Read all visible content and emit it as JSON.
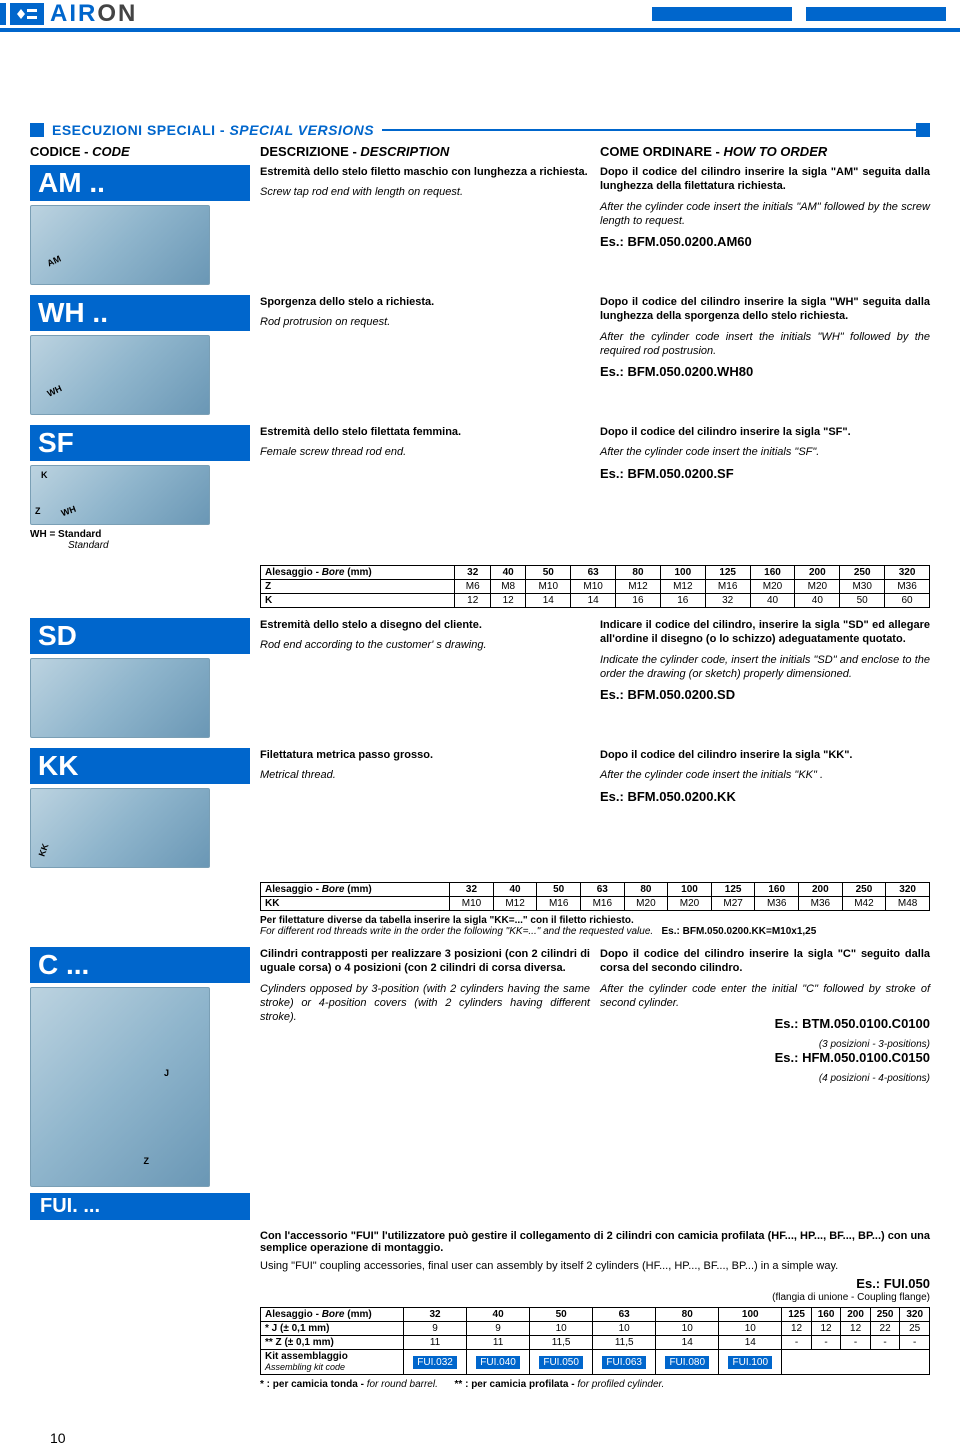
{
  "brand": {
    "air": "AIR",
    "on": "ON"
  },
  "section_title": {
    "main": "ESECUZIONI SPECIALI - ",
    "it": "SPECIAL VERSIONS"
  },
  "headers": {
    "code": "CODICE - ",
    "code_it": "CODE",
    "desc": "DESCRIZIONE - ",
    "desc_it": "DESCRIPTION",
    "order": "COME ORDINARE - ",
    "order_it": "HOW TO ORDER"
  },
  "am": {
    "code": "AM ..",
    "desc1": "Estremità dello stelo filetto maschio con lunghezza a richiesta.",
    "desc2": "Screw tap rod end with length on request.",
    "order1": "Dopo il codice del cilindro inserire la sigla \"AM\" seguita dalla lunghezza della filettatura richiesta.",
    "order2": "After the cylinder code insert the initials \"AM\" followed by the screw length to request.",
    "es": "Es.: BFM.050.0200.AM60",
    "img_label": "AM"
  },
  "wh": {
    "code": "WH ..",
    "desc1": "Sporgenza dello stelo a richiesta.",
    "desc2": "Rod protrusion on request.",
    "order1": "Dopo il codice del cilindro inserire la sigla \"WH\" seguita dalla lunghezza della sporgenza dello stelo richiesta.",
    "order2": "After the cylinder code insert the initials \"WH\" followed by the required rod postrusion.",
    "es": "Es.: BFM.050.0200.WH80",
    "img_label": "WH"
  },
  "sf": {
    "code": "SF",
    "desc1": "Estremità dello stelo filettata femmina.",
    "desc2": "Female screw thread rod end.",
    "order1": "Dopo il codice del cilindro inserire la sigla \"SF\".",
    "order2": "After the cylinder code insert the initials \"SF\".",
    "es": "Es.: BFM.050.0200.SF",
    "wh_note": "WH = Standard",
    "wh_note_it": "Standard",
    "img_k": "K",
    "img_z": "Z",
    "img_wh": "WH",
    "table": {
      "header": "Alesaggio - ",
      "header_it": "Bore",
      "unit": "(mm)",
      "cols": [
        "32",
        "40",
        "50",
        "63",
        "80",
        "100",
        "125",
        "160",
        "200",
        "250",
        "320"
      ],
      "rows": [
        {
          "label": "Z",
          "vals": [
            "M6",
            "M8",
            "M10",
            "M10",
            "M12",
            "M12",
            "M16",
            "M20",
            "M20",
            "M30",
            "M36"
          ]
        },
        {
          "label": "K",
          "vals": [
            "12",
            "12",
            "14",
            "14",
            "16",
            "16",
            "32",
            "40",
            "40",
            "50",
            "60"
          ]
        }
      ]
    }
  },
  "sd": {
    "code": "SD",
    "desc1": "Estremità dello stelo a disegno del cliente.",
    "desc2": "Rod end according to the customer' s drawing.",
    "order1": "Indicare il codice del cilindro, inserire la sigla \"SD\" ed allegare all'ordine il disegno (o lo schizzo) adeguatamente quotato.",
    "order2": "Indicate the cylinder code, insert the initials \"SD\" and enclose to the order the drawing (or sketch) properly dimensioned.",
    "es": "Es.: BFM.050.0200.SD"
  },
  "kk": {
    "code": "KK",
    "desc1": "Filettatura metrica passo grosso.",
    "desc2": "Metrical thread.",
    "order1": "Dopo il codice del cilindro inserire la sigla \"KK\".",
    "order2": "After the cylinder code insert the initials \"KK\" .",
    "es": "Es.: BFM.050.0200.KK",
    "img_label": "KK",
    "table": {
      "header": "Alesaggio - ",
      "header_it": "Bore",
      "unit": "(mm)",
      "cols": [
        "32",
        "40",
        "50",
        "63",
        "80",
        "100",
        "125",
        "160",
        "200",
        "250",
        "320"
      ],
      "rows": [
        {
          "label": "KK",
          "vals": [
            "M10",
            "M12",
            "M16",
            "M16",
            "M20",
            "M20",
            "M27",
            "M36",
            "M36",
            "M42",
            "M48"
          ]
        }
      ]
    },
    "note1": "Per filettature diverse da tabella inserire la sigla \"KK=...\" con il filetto richiesto.",
    "note2": "For different rod threads write in the order the following \"KK=...\" and the requested value.",
    "note_es": "Es.: BFM.050.0200.KK=M10x1,25"
  },
  "c": {
    "code": "C ...",
    "fui_badge": "FUI. ...",
    "img_j": "J",
    "img_z": "Z",
    "desc1": "Cilindri contrapposti per realizzare 3 posizioni (con 2 cilindri di uguale corsa) o 4 posizioni (con 2 cilindri di corsa diversa.",
    "desc2": "Cylinders opposed by 3-position (with 2 cylinders having the same stroke) or 4-position covers (with 2 cylinders having different stroke).",
    "order1": "Dopo il codice del cilindro inserire la sigla \"C\" seguito dalla corsa del secondo cilindro.",
    "order2": "After the cylinder code enter the initial \"C\" followed by stroke of second cylinder.",
    "es1": "Es.: BTM.050.0100.C0100",
    "es1_sub": "(3 posizioni - 3-positions)",
    "es2": "Es.: HFM.050.0100.C0150",
    "es2_sub": "(4 posizioni - 4-positions)",
    "fui1": "Con l'accessorio \"FUI\" l'utilizzatore può gestire il collegamento di 2 cilindri con camicia profilata (HF..., HP..., BF..., BP...) con una semplice operazione di montaggio.",
    "fui2": "Using \"FUI\" coupling accessories, final user can assembly by itself 2 cylinders (HF..., HP..., BF..., BP...) in a simple way.",
    "fui_es": "Es.: FUI.050",
    "fui_es_sub": "(flangia di unione - Coupling flange)",
    "table": {
      "header": "Alesaggio - ",
      "header_it": "Bore",
      "unit": "(mm)",
      "cols": [
        "32",
        "40",
        "50",
        "63",
        "80",
        "100",
        "125",
        "160",
        "200",
        "250",
        "320"
      ],
      "rows": [
        {
          "label": "* J (± 0,1 mm)",
          "vals": [
            "9",
            "9",
            "10",
            "10",
            "10",
            "10",
            "12",
            "12",
            "12",
            "22",
            "25"
          ]
        },
        {
          "label": "** Z (± 0,1 mm)",
          "vals": [
            "11",
            "11",
            "11,5",
            "11,5",
            "14",
            "14",
            "-",
            "-",
            "-",
            "-",
            "-"
          ]
        }
      ],
      "kit_label": "Kit assemblaggio",
      "kit_label_it": "Assembling kit code",
      "kits": [
        "FUI.032",
        "FUI.040",
        "FUI.050",
        "FUI.063",
        "FUI.080",
        "FUI.100"
      ]
    },
    "foot1": "* : per camicia tonda - ",
    "foot1_it": "for round barrel.",
    "foot2": "** : per camicia profilata - ",
    "foot2_it": "for profiled cylinder."
  },
  "page_number": "10"
}
